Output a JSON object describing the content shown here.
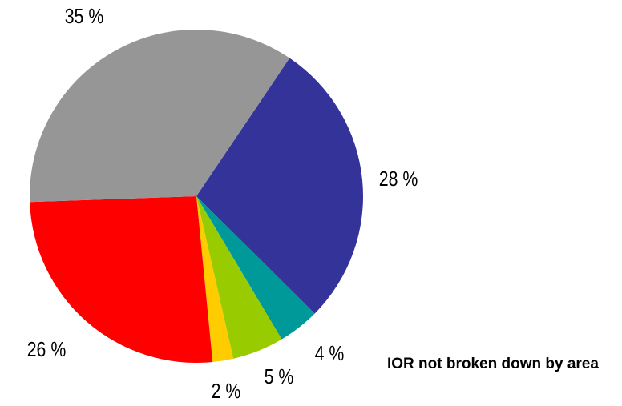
{
  "chart_data": {
    "type": "pie",
    "values": [
      28,
      4,
      5,
      2,
      26,
      35
    ],
    "value_labels": [
      "28 %",
      "4 %",
      "5 %",
      "2 %",
      "26 %",
      "35 %"
    ],
    "colors": [
      "#333399",
      "#009999",
      "#99cc00",
      "#ffcc00",
      "#ff0000",
      "#969696"
    ],
    "annotation": "IOR not broken down by area"
  }
}
